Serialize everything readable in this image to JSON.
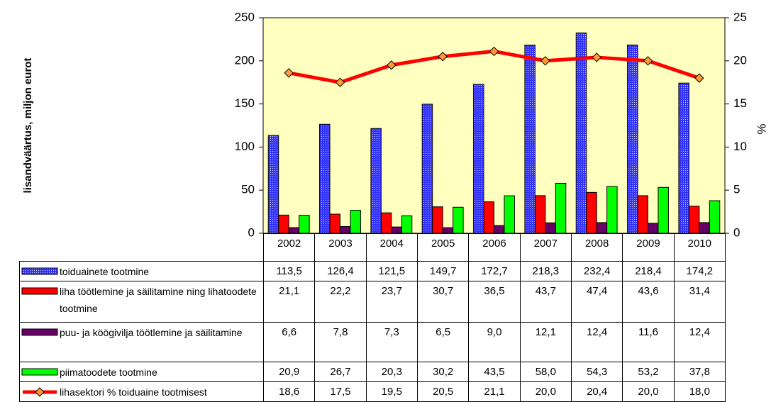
{
  "chart_data": {
    "type": "bar",
    "ylabel": "lisandväärtus, miljon eurot",
    "y2label": "%",
    "categories": [
      "2002",
      "2003",
      "2004",
      "2005",
      "2006",
      "2007",
      "2008",
      "2009",
      "2010"
    ],
    "ylim": [
      0,
      250
    ],
    "yticks": [
      0,
      50,
      100,
      150,
      200,
      250
    ],
    "y2lim": [
      0,
      25
    ],
    "y2ticks": [
      0,
      5,
      10,
      15,
      20,
      25
    ],
    "series": [
      {
        "name": "toiduainete tootmine",
        "color": "#3333ff",
        "values": [
          113.5,
          126.4,
          121.5,
          149.7,
          172.7,
          218.3,
          232.4,
          218.4,
          174.2
        ],
        "value_labels": [
          "113,5",
          "126,4",
          "121,5",
          "149,7",
          "172,7",
          "218,3",
          "232,4",
          "218,4",
          "174,2"
        ]
      },
      {
        "name": "liha töötlemine ja säilitamine ning lihatoodete tootmine",
        "color": "#ff0000",
        "values": [
          21.1,
          22.2,
          23.7,
          30.7,
          36.5,
          43.7,
          47.4,
          43.6,
          31.4
        ],
        "value_labels": [
          "21,1",
          "22,2",
          "23,7",
          "30,7",
          "36,5",
          "43,7",
          "47,4",
          "43,6",
          "31,4"
        ]
      },
      {
        "name": "puu- ja köögivilja töötlemine ja säilitamine",
        "color": "#660066",
        "values": [
          6.6,
          7.8,
          7.3,
          6.5,
          9.0,
          12.1,
          12.4,
          11.6,
          12.4
        ],
        "value_labels": [
          "6,6",
          "7,8",
          "7,3",
          "6,5",
          "9,0",
          "12,1",
          "12,4",
          "11,6",
          "12,4"
        ]
      },
      {
        "name": "piimatoodete tootmine",
        "color": "#00ff00",
        "values": [
          20.9,
          26.7,
          20.3,
          30.2,
          43.5,
          58.0,
          54.3,
          53.2,
          37.8
        ],
        "value_labels": [
          "20,9",
          "26,7",
          "20,3",
          "30,2",
          "43,5",
          "58,0",
          "54,3",
          "53,2",
          "37,8"
        ]
      },
      {
        "name": "lihasektori % toiduaine tootmisest",
        "type": "line",
        "axis": "y2",
        "color": "#ff0000",
        "marker_color": "#ff9933",
        "values": [
          18.6,
          17.5,
          19.5,
          20.5,
          21.1,
          20.0,
          20.4,
          20.0,
          18.0
        ],
        "value_labels": [
          "18,6",
          "17,5",
          "19,5",
          "20,5",
          "21,1",
          "20,0",
          "20,4",
          "20,0",
          "18,0"
        ]
      }
    ]
  }
}
